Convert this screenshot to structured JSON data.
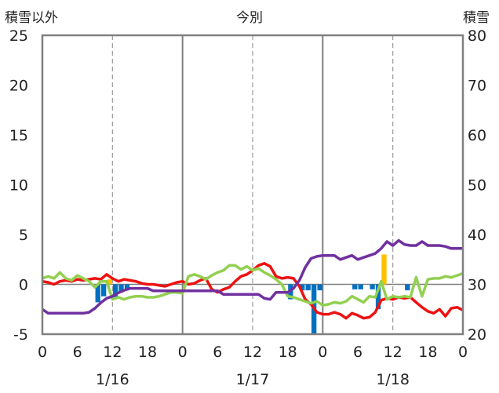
{
  "chart_data": {
    "type": "line",
    "title": "今別",
    "left_axis_label": "積雪以外",
    "right_axis_label": "積雪",
    "ylim_left": [
      -5,
      25
    ],
    "ylim_right": [
      20,
      80
    ],
    "yticks_left": [
      "25",
      "20",
      "15",
      "10",
      "5",
      "0",
      "-5"
    ],
    "yticks_right": [
      "80",
      "70",
      "60",
      "50",
      "40",
      "30",
      "20"
    ],
    "x_hours_total": 72,
    "xtick_labels": [
      "0",
      "6",
      "12",
      "18",
      "0",
      "6",
      "12",
      "18",
      "0",
      "6",
      "12",
      "18",
      "0"
    ],
    "date_labels": [
      "1/16",
      "1/17",
      "1/18"
    ],
    "colors": {
      "red": "#ee1111",
      "green": "#92d050",
      "purple": "#7030a0",
      "blue_bar": "#0070c0",
      "yellow_bar": "#ffc000",
      "grid": "#999999",
      "frame": "#808080"
    },
    "series": [
      {
        "color_key": "red",
        "axis": "left",
        "points": [
          [
            0,
            0.3
          ],
          [
            1,
            0.2
          ],
          [
            2,
            0
          ],
          [
            3,
            0.3
          ],
          [
            4,
            0.4
          ],
          [
            5,
            0.3
          ],
          [
            6,
            0.5
          ],
          [
            7,
            0.4
          ],
          [
            8,
            0.5
          ],
          [
            9,
            0.6
          ],
          [
            10,
            0.5
          ],
          [
            11,
            1.0
          ],
          [
            12,
            0.6
          ],
          [
            13,
            0.3
          ],
          [
            14,
            0.5
          ],
          [
            15,
            0.4
          ],
          [
            16,
            0.3
          ],
          [
            17,
            0.1
          ],
          [
            18,
            0.0
          ],
          [
            19,
            0.0
          ],
          [
            20,
            -0.1
          ],
          [
            21,
            -0.2
          ],
          [
            22,
            0.0
          ],
          [
            23,
            0.2
          ],
          [
            24,
            0.3
          ],
          [
            25,
            0.0
          ],
          [
            26,
            0.1
          ],
          [
            27,
            0.4
          ],
          [
            28,
            0.6
          ],
          [
            29,
            -0.5
          ],
          [
            30,
            -0.8
          ],
          [
            31,
            -0.5
          ],
          [
            32,
            -0.3
          ],
          [
            33,
            0.3
          ],
          [
            34,
            0.8
          ],
          [
            35,
            1.0
          ],
          [
            36,
            1.4
          ],
          [
            37,
            1.9
          ],
          [
            38,
            2.1
          ],
          [
            39,
            1.8
          ],
          [
            40,
            0.8
          ],
          [
            41,
            0.6
          ],
          [
            42,
            0.7
          ],
          [
            43,
            0.6
          ],
          [
            44,
            -0.2
          ],
          [
            45,
            -1.5
          ],
          [
            46,
            -2.0
          ],
          [
            47,
            -2.8
          ],
          [
            48,
            -3.0
          ],
          [
            49,
            -3.0
          ],
          [
            50,
            -2.8
          ],
          [
            51,
            -3.0
          ],
          [
            52,
            -3.4
          ],
          [
            53,
            -2.9
          ],
          [
            54,
            -3.1
          ],
          [
            55,
            -3.4
          ],
          [
            56,
            -3.3
          ],
          [
            57,
            -2.8
          ],
          [
            58,
            -1.6
          ],
          [
            59,
            -1.4
          ],
          [
            60,
            -1.5
          ],
          [
            61,
            -1.3
          ],
          [
            62,
            -1.4
          ],
          [
            63,
            -1.3
          ],
          [
            64,
            -1.8
          ],
          [
            65,
            -2.3
          ],
          [
            66,
            -2.7
          ],
          [
            67,
            -2.9
          ],
          [
            68,
            -2.5
          ],
          [
            69,
            -3.2
          ],
          [
            70,
            -2.4
          ],
          [
            71,
            -2.3
          ],
          [
            72,
            -2.6
          ]
        ]
      },
      {
        "color_key": "green",
        "axis": "left",
        "points": [
          [
            0,
            0.6
          ],
          [
            1,
            0.8
          ],
          [
            2,
            0.6
          ],
          [
            3,
            1.2
          ],
          [
            4,
            0.6
          ],
          [
            5,
            0.4
          ],
          [
            6,
            0.9
          ],
          [
            7,
            0.6
          ],
          [
            8,
            0.3
          ],
          [
            9,
            -0.3
          ],
          [
            10,
            0.3
          ],
          [
            11,
            0.3
          ],
          [
            12,
            -1.5
          ],
          [
            13,
            -1.3
          ],
          [
            14,
            -1.5
          ],
          [
            15,
            -1.3
          ],
          [
            16,
            -1.2
          ],
          [
            17,
            -1.2
          ],
          [
            18,
            -1.3
          ],
          [
            19,
            -1.3
          ],
          [
            20,
            -1.2
          ],
          [
            21,
            -1.0
          ],
          [
            22,
            -0.8
          ],
          [
            23,
            -0.8
          ],
          [
            24,
            -0.9
          ],
          [
            25,
            0.8
          ],
          [
            26,
            1.0
          ],
          [
            27,
            0.8
          ],
          [
            28,
            0.5
          ],
          [
            29,
            0.9
          ],
          [
            30,
            1.2
          ],
          [
            31,
            1.4
          ],
          [
            32,
            1.9
          ],
          [
            33,
            1.9
          ],
          [
            34,
            1.5
          ],
          [
            35,
            1.8
          ],
          [
            36,
            1.4
          ],
          [
            37,
            1.6
          ],
          [
            38,
            1.2
          ],
          [
            39,
            0.9
          ],
          [
            40,
            0.5
          ],
          [
            41,
            0.0
          ],
          [
            42,
            -1.2
          ],
          [
            43,
            -1.3
          ],
          [
            44,
            -1.5
          ],
          [
            45,
            -1.7
          ],
          [
            46,
            -1.9
          ],
          [
            47,
            -1.7
          ],
          [
            48,
            -2.1
          ],
          [
            49,
            -2.0
          ],
          [
            50,
            -1.8
          ],
          [
            51,
            -1.9
          ],
          [
            52,
            -1.7
          ],
          [
            53,
            -1.2
          ],
          [
            54,
            -1.5
          ],
          [
            55,
            -1.8
          ],
          [
            56,
            -1.2
          ],
          [
            57,
            -1.3
          ],
          [
            58,
            0.3
          ],
          [
            59,
            -1.5
          ],
          [
            60,
            -1.2
          ],
          [
            61,
            -1.3
          ],
          [
            62,
            -1.2
          ],
          [
            63,
            -1.3
          ],
          [
            64,
            0.7
          ],
          [
            65,
            -1.2
          ],
          [
            66,
            0.5
          ],
          [
            67,
            0.6
          ],
          [
            68,
            0.6
          ],
          [
            69,
            0.8
          ],
          [
            70,
            0.7
          ],
          [
            71,
            0.9
          ],
          [
            72,
            1.1
          ]
        ]
      },
      {
        "color_key": "purple",
        "axis": "right",
        "points": [
          [
            0,
            25.0
          ],
          [
            1,
            24.2
          ],
          [
            2,
            24.2
          ],
          [
            3,
            24.2
          ],
          [
            4,
            24.2
          ],
          [
            5,
            24.2
          ],
          [
            6,
            24.2
          ],
          [
            7,
            24.2
          ],
          [
            8,
            24.4
          ],
          [
            9,
            25.2
          ],
          [
            10,
            26.3
          ],
          [
            11,
            27.2
          ],
          [
            12,
            27.6
          ],
          [
            13,
            28.3
          ],
          [
            14,
            28.8
          ],
          [
            15,
            29.2
          ],
          [
            16,
            29.2
          ],
          [
            17,
            29.2
          ],
          [
            18,
            29.2
          ],
          [
            19,
            28.7
          ],
          [
            20,
            28.7
          ],
          [
            21,
            28.7
          ],
          [
            22,
            28.7
          ],
          [
            23,
            28.7
          ],
          [
            24,
            28.7
          ],
          [
            25,
            28.7
          ],
          [
            26,
            28.7
          ],
          [
            27,
            28.7
          ],
          [
            28,
            28.7
          ],
          [
            29,
            28.7
          ],
          [
            30,
            28.7
          ],
          [
            31,
            28.0
          ],
          [
            32,
            28.0
          ],
          [
            33,
            28.0
          ],
          [
            34,
            28.0
          ],
          [
            35,
            28.0
          ],
          [
            36,
            28.0
          ],
          [
            37,
            28.0
          ],
          [
            38,
            27.2
          ],
          [
            39,
            27.0
          ],
          [
            40,
            28.4
          ],
          [
            41,
            28.4
          ],
          [
            42,
            28.4
          ],
          [
            43,
            29.2
          ],
          [
            44,
            30.8
          ],
          [
            45,
            33.4
          ],
          [
            46,
            35.2
          ],
          [
            47,
            35.6
          ],
          [
            48,
            35.8
          ],
          [
            49,
            35.8
          ],
          [
            50,
            35.8
          ],
          [
            51,
            35.0
          ],
          [
            52,
            35.4
          ],
          [
            53,
            35.8
          ],
          [
            54,
            35.0
          ],
          [
            55,
            35.4
          ],
          [
            56,
            35.8
          ],
          [
            57,
            36.2
          ],
          [
            58,
            37.2
          ],
          [
            59,
            38.6
          ],
          [
            60,
            37.8
          ],
          [
            61,
            38.8
          ],
          [
            62,
            38.0
          ],
          [
            63,
            37.8
          ],
          [
            64,
            37.8
          ],
          [
            65,
            38.6
          ],
          [
            66,
            37.8
          ],
          [
            67,
            37.8
          ],
          [
            68,
            37.8
          ],
          [
            69,
            37.6
          ],
          [
            70,
            37.2
          ],
          [
            71,
            37.2
          ],
          [
            72,
            37.2
          ]
        ]
      }
    ],
    "bars": [
      {
        "x": 9.5,
        "value": -1.8,
        "color_key": "blue_bar"
      },
      {
        "x": 10.5,
        "value": -1.2,
        "color_key": "blue_bar"
      },
      {
        "x": 11.5,
        "value": 0.5,
        "color_key": "yellow_bar"
      },
      {
        "x": 12.5,
        "value": -1.3,
        "color_key": "blue_bar"
      },
      {
        "x": 13.5,
        "value": -0.8,
        "color_key": "blue_bar"
      },
      {
        "x": 14.5,
        "value": -0.6,
        "color_key": "blue_bar"
      },
      {
        "x": 42.5,
        "value": -1.5,
        "color_key": "blue_bar"
      },
      {
        "x": 44.5,
        "value": -0.6,
        "color_key": "blue_bar"
      },
      {
        "x": 45.5,
        "value": -0.6,
        "color_key": "blue_bar"
      },
      {
        "x": 46.5,
        "value": -5.0,
        "color_key": "blue_bar"
      },
      {
        "x": 47.5,
        "value": -0.6,
        "color_key": "blue_bar"
      },
      {
        "x": 53.5,
        "value": -0.5,
        "color_key": "blue_bar"
      },
      {
        "x": 54.5,
        "value": -0.5,
        "color_key": "blue_bar"
      },
      {
        "x": 56.5,
        "value": -0.5,
        "color_key": "blue_bar"
      },
      {
        "x": 57.5,
        "value": -2.5,
        "color_key": "blue_bar"
      },
      {
        "x": 58.5,
        "value": 3.0,
        "color_key": "yellow_bar"
      },
      {
        "x": 62.5,
        "value": -0.6,
        "color_key": "blue_bar"
      }
    ]
  }
}
